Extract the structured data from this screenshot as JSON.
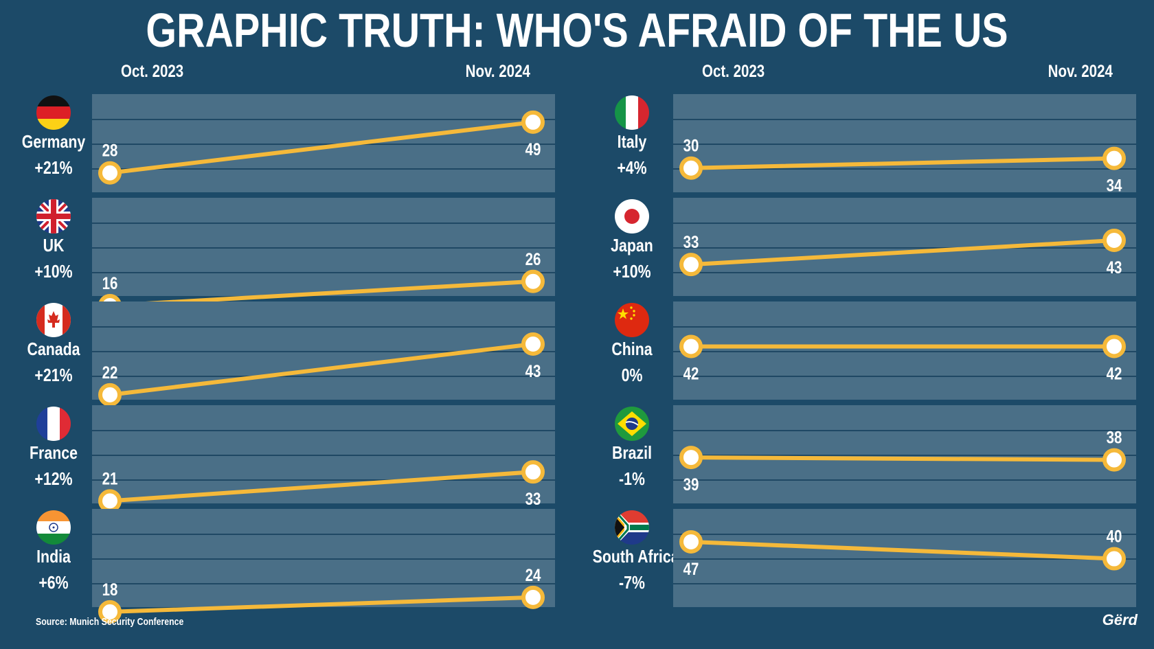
{
  "title": "GRAPHIC TRUTH: WHO'S AFRAID OF THE US",
  "columns": {
    "left_start": "Oct. 2023",
    "left_end": "Nov. 2024",
    "right_start": "Oct. 2023",
    "right_end": "Nov. 2024"
  },
  "source": "Source: Munich Security Conference",
  "logo": "Gërd",
  "colors": {
    "background": "#1c4a68",
    "panel": "#4a6f87",
    "line": "#f5b93a",
    "text": "#ffffff"
  },
  "chart_data": {
    "type": "line",
    "x": [
      "Oct. 2023",
      "Nov. 2024"
    ],
    "series": [
      {
        "name": "Germany",
        "change": "+21%",
        "values": [
          28,
          49
        ],
        "flag": "germany-flag"
      },
      {
        "name": "UK",
        "change": "+10%",
        "values": [
          16,
          26
        ],
        "flag": "uk-flag"
      },
      {
        "name": "Canada",
        "change": "+21%",
        "values": [
          22,
          43
        ],
        "flag": "canada-flag"
      },
      {
        "name": "France",
        "change": "+12%",
        "values": [
          21,
          33
        ],
        "flag": "france-flag"
      },
      {
        "name": "India",
        "change": "+6%",
        "values": [
          18,
          24
        ],
        "flag": "india-flag"
      },
      {
        "name": "Italy",
        "change": "+4%",
        "values": [
          30,
          34
        ],
        "flag": "italy-flag"
      },
      {
        "name": "Japan",
        "change": "+10%",
        "values": [
          33,
          43
        ],
        "flag": "japan-flag"
      },
      {
        "name": "China",
        "change": "0%",
        "values": [
          42,
          42
        ],
        "flag": "china-flag"
      },
      {
        "name": "Brazil",
        "change": "-1%",
        "values": [
          39,
          38
        ],
        "flag": "brazil-flag"
      },
      {
        "name": "South Africa",
        "change": "-7%",
        "values": [
          47,
          40
        ],
        "flag": "south-africa-flag"
      }
    ]
  }
}
